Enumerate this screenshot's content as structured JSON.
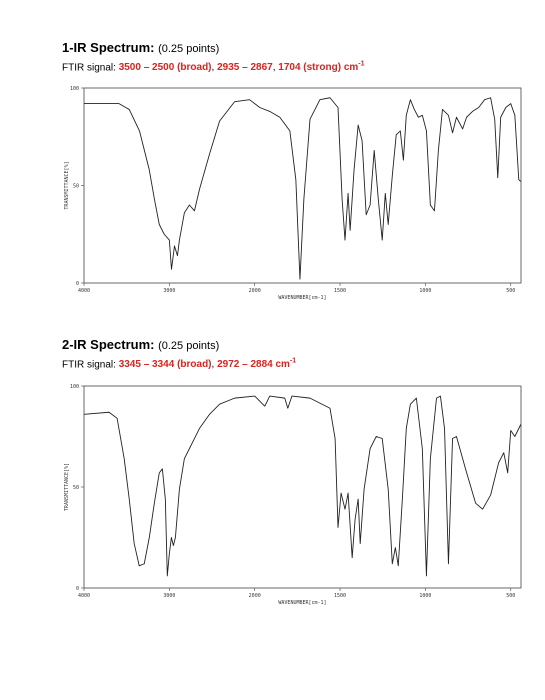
{
  "sections": [
    {
      "title": "1-IR Spectrum:",
      "note": "(0.25 points)",
      "signal_label": "FTIR signal:",
      "signal": [
        {
          "text": "3500 – 2500 (broad)",
          "red": true
        },
        {
          "text": ", ",
          "red": false
        },
        {
          "text": "2935 – 2867",
          "red": true
        },
        {
          "text": ", ",
          "red": false
        },
        {
          "text": "1704 (strong) cm",
          "red": true
        },
        {
          "text": "-1",
          "red": true,
          "sup": true
        }
      ]
    },
    {
      "title": "2-IR Spectrum:",
      "note": "(0.25 points)",
      "signal_label": "FTIR signal:",
      "signal": [
        {
          "text": "3345 – 3344 (broad)",
          "red": true
        },
        {
          "text": ", ",
          "red": false
        },
        {
          "text": "2972 – 2884 cm",
          "red": true
        },
        {
          "text": "-1",
          "red": true,
          "sup": true
        }
      ]
    }
  ],
  "chart_data": [
    {
      "type": "line",
      "xlabel": "WAVENUMBER[cm-1]",
      "ylabel": "TRANSMITTANCE[%]",
      "xlim": [
        4000,
        440
      ],
      "ylim": [
        0,
        100
      ],
      "xticks": [
        4000,
        3000,
        2000,
        1500,
        1000,
        500
      ],
      "yticks": [
        0,
        50,
        100
      ],
      "x": [
        4000,
        3590,
        3470,
        3350,
        3235,
        3175,
        3118,
        3060,
        3000,
        2975,
        2940,
        2905,
        2882,
        2824,
        2765,
        2706,
        2647,
        2530,
        2412,
        2235,
        2060,
        1970,
        1912,
        1853,
        1794,
        1759,
        1735,
        1712,
        1676,
        1618,
        1559,
        1512,
        1488,
        1471,
        1453,
        1441,
        1418,
        1394,
        1371,
        1347,
        1324,
        1300,
        1276,
        1253,
        1235,
        1218,
        1194,
        1171,
        1147,
        1129,
        1112,
        1088,
        1065,
        1041,
        1018,
        994,
        971,
        947,
        924,
        900,
        865,
        841,
        818,
        782,
        759,
        724,
        688,
        653,
        618,
        594,
        576,
        559,
        529,
        500,
        476,
        453,
        441
      ],
      "series": [
        {
          "color": "#222222",
          "values": [
            92,
            92,
            89,
            78,
            58,
            43,
            30,
            25,
            22,
            7,
            19,
            14,
            22,
            36,
            40,
            37,
            48,
            66,
            83,
            93,
            94,
            90,
            88,
            85,
            78,
            53,
            2,
            43,
            84,
            94,
            95,
            90,
            43,
            22,
            46,
            27,
            58,
            81,
            73,
            35,
            40,
            68,
            43,
            22,
            46,
            30,
            55,
            76,
            78,
            63,
            86,
            94,
            89,
            85,
            86,
            78,
            40,
            37,
            68,
            89,
            86,
            77,
            85,
            79,
            85,
            88,
            90,
            94,
            95,
            84,
            54,
            85,
            90,
            92,
            86,
            53,
            52
          ]
        }
      ]
    },
    {
      "type": "line",
      "xlabel": "WAVENUMBER[cm-1]",
      "ylabel": "TRANSMITTANCE[%]",
      "xlim": [
        4000,
        440
      ],
      "ylim": [
        0,
        100
      ],
      "xticks": [
        4000,
        3000,
        2000,
        1500,
        1000,
        500
      ],
      "yticks": [
        0,
        50,
        100
      ],
      "x": [
        4000,
        3706,
        3612,
        3529,
        3470,
        3412,
        3353,
        3294,
        3235,
        3176,
        3118,
        3082,
        3047,
        3024,
        3000,
        2976,
        2953,
        2929,
        2882,
        2824,
        2765,
        2706,
        2647,
        2529,
        2412,
        2235,
        2000,
        1941,
        1912,
        1824,
        1806,
        1782,
        1676,
        1559,
        1529,
        1512,
        1494,
        1471,
        1453,
        1429,
        1412,
        1394,
        1382,
        1359,
        1324,
        1288,
        1253,
        1218,
        1194,
        1176,
        1159,
        1135,
        1112,
        1088,
        1053,
        1018,
        994,
        971,
        935,
        912,
        888,
        865,
        841,
        818,
        765,
        706,
        665,
        618,
        571,
        541,
        518,
        500,
        476,
        441
      ],
      "series": [
        {
          "color": "#222222",
          "values": [
            86,
            87,
            84,
            64,
            44,
            22,
            11,
            12,
            25,
            42,
            57,
            59,
            44,
            6,
            17,
            25,
            21,
            25,
            49,
            64,
            69,
            74,
            79,
            86,
            91,
            94,
            95,
            90,
            95,
            94,
            89,
            95,
            94,
            89,
            74,
            30,
            47,
            39,
            47,
            15,
            34,
            44,
            22,
            49,
            69,
            75,
            74,
            49,
            12,
            20,
            11,
            44,
            79,
            91,
            94,
            69,
            6,
            64,
            94,
            95,
            79,
            12,
            74,
            75,
            59,
            42,
            39,
            46,
            62,
            67,
            57,
            78,
            75,
            81
          ]
        }
      ]
    }
  ]
}
